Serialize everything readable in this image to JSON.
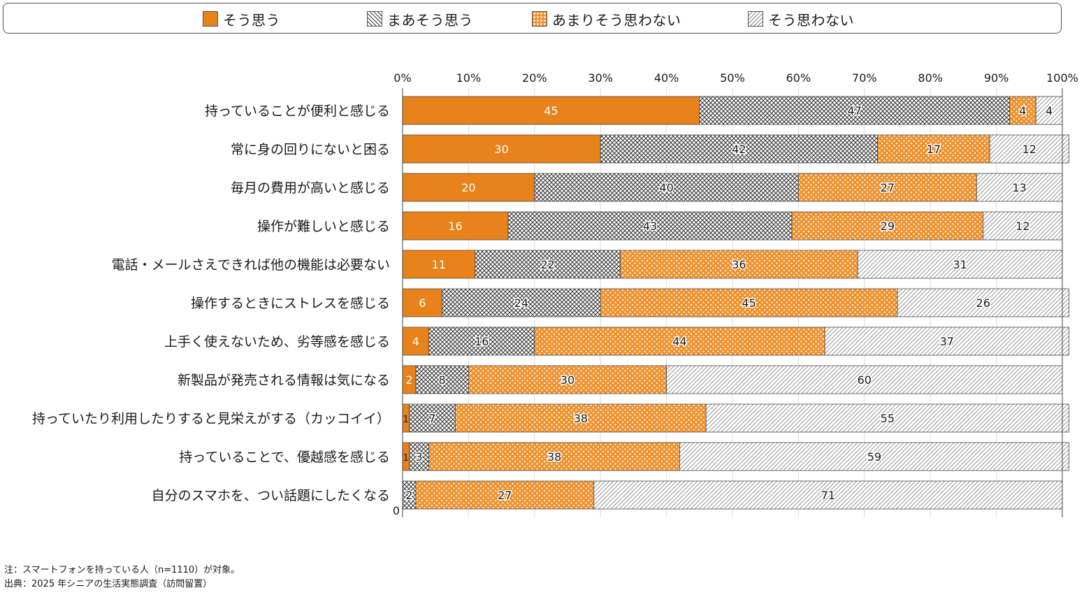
{
  "chart_data": {
    "type": "bar",
    "orientation": "horizontal",
    "stacked": true,
    "unit": "%",
    "xlim": [
      0,
      100
    ],
    "xticks": [
      "0%",
      "10%",
      "20%",
      "30%",
      "40%",
      "50%",
      "60%",
      "70%",
      "80%",
      "90%",
      "100%"
    ],
    "zero_label": "0",
    "categories": [
      "持っていることが便利と感じる",
      "常に身の回りにないと困る",
      "毎月の費用が高いと感じる",
      "操作が難しいと感じる",
      "電話・メールさえできれば他の機能は必要ない",
      "操作するときにストレスを感じる",
      "上手く使えないため、劣等感を感じる",
      "新製品が発売される情報は気になる",
      "持っていたり利用したりすると見栄えがする（カッコイイ）",
      "持っていることで、優越感を感じる",
      "自分のスマホを、つい話題にしたくなる"
    ],
    "series": [
      {
        "name": "そう思う",
        "color": "#e8821a",
        "pattern": "solid",
        "values": [
          45,
          30,
          20,
          16,
          11,
          6,
          4,
          2,
          1,
          1,
          0
        ]
      },
      {
        "name": "まあそう思う",
        "color": "#555555",
        "pattern": "crosshatch",
        "values": [
          47,
          42,
          40,
          43,
          22,
          24,
          16,
          8,
          7,
          3,
          2
        ]
      },
      {
        "name": "あまりそう思わない",
        "color": "#f0922e",
        "pattern": "dots",
        "values": [
          4,
          17,
          27,
          29,
          36,
          45,
          44,
          30,
          38,
          38,
          27
        ]
      },
      {
        "name": "そう思わない",
        "color": "#999999",
        "pattern": "diagonal",
        "values": [
          4,
          12,
          13,
          12,
          31,
          26,
          37,
          60,
          55,
          59,
          71
        ]
      }
    ],
    "legend_position": "top",
    "grid": true
  },
  "notes": [
    "注：スマートフォンを持っている人（n=1110）が対象。",
    "出典：2025 年シニアの生活実態調査（訪問留置）"
  ]
}
